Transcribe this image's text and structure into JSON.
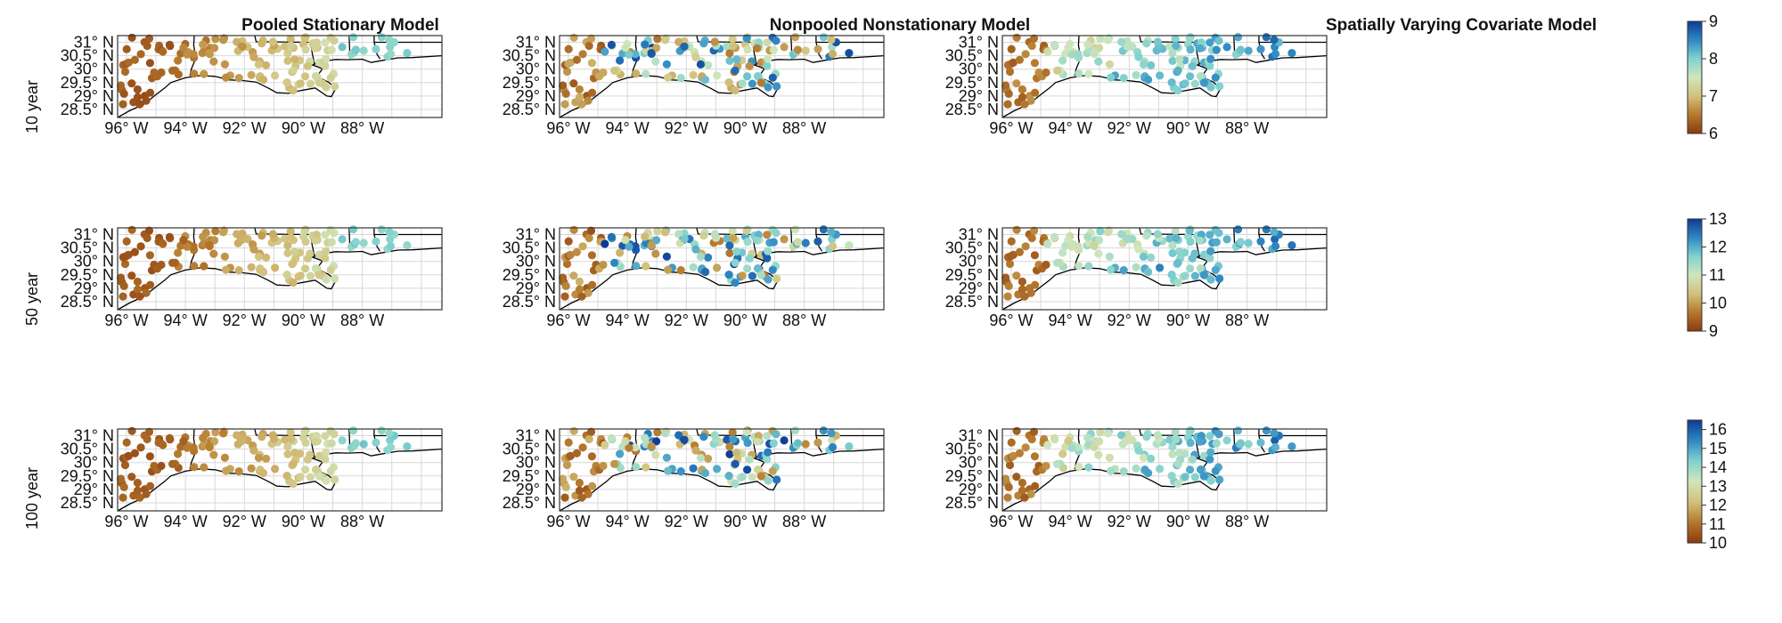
{
  "titles": [
    "Pooled Stationary Model",
    "Nonpooled Nonstationary Model",
    "Spatially Varying Covariate Model"
  ],
  "row_labels": [
    "10 year",
    "50 year",
    "100 year"
  ],
  "lat_ticks": [
    "31° N",
    "30.5° N",
    "30° N",
    "29.5° N",
    "29° N",
    "28.5° N"
  ],
  "lon_ticks": [
    "96° W",
    "94° W",
    "92° W",
    "90° W",
    "88° W"
  ],
  "colorbars": [
    {
      "min": 6,
      "max": 9,
      "ticks": [
        "6",
        "7",
        "8",
        "9"
      ]
    },
    {
      "min": 9,
      "max": 13,
      "ticks": [
        "9",
        "10",
        "11",
        "12",
        "13"
      ]
    },
    {
      "min": 10,
      "max": 16.5,
      "ticks": [
        "10",
        "11",
        "12",
        "13",
        "14",
        "15",
        "16"
      ]
    }
  ],
  "colors": {
    "scale": [
      "#8b3a0e",
      "#b57a2e",
      "#d2c07a",
      "#cfe6bc",
      "#7fd1cf",
      "#2f8ac4",
      "#0d3b94"
    ],
    "coast": "#000000",
    "grid": "#d8d8d8",
    "frame": "#333333"
  }
}
